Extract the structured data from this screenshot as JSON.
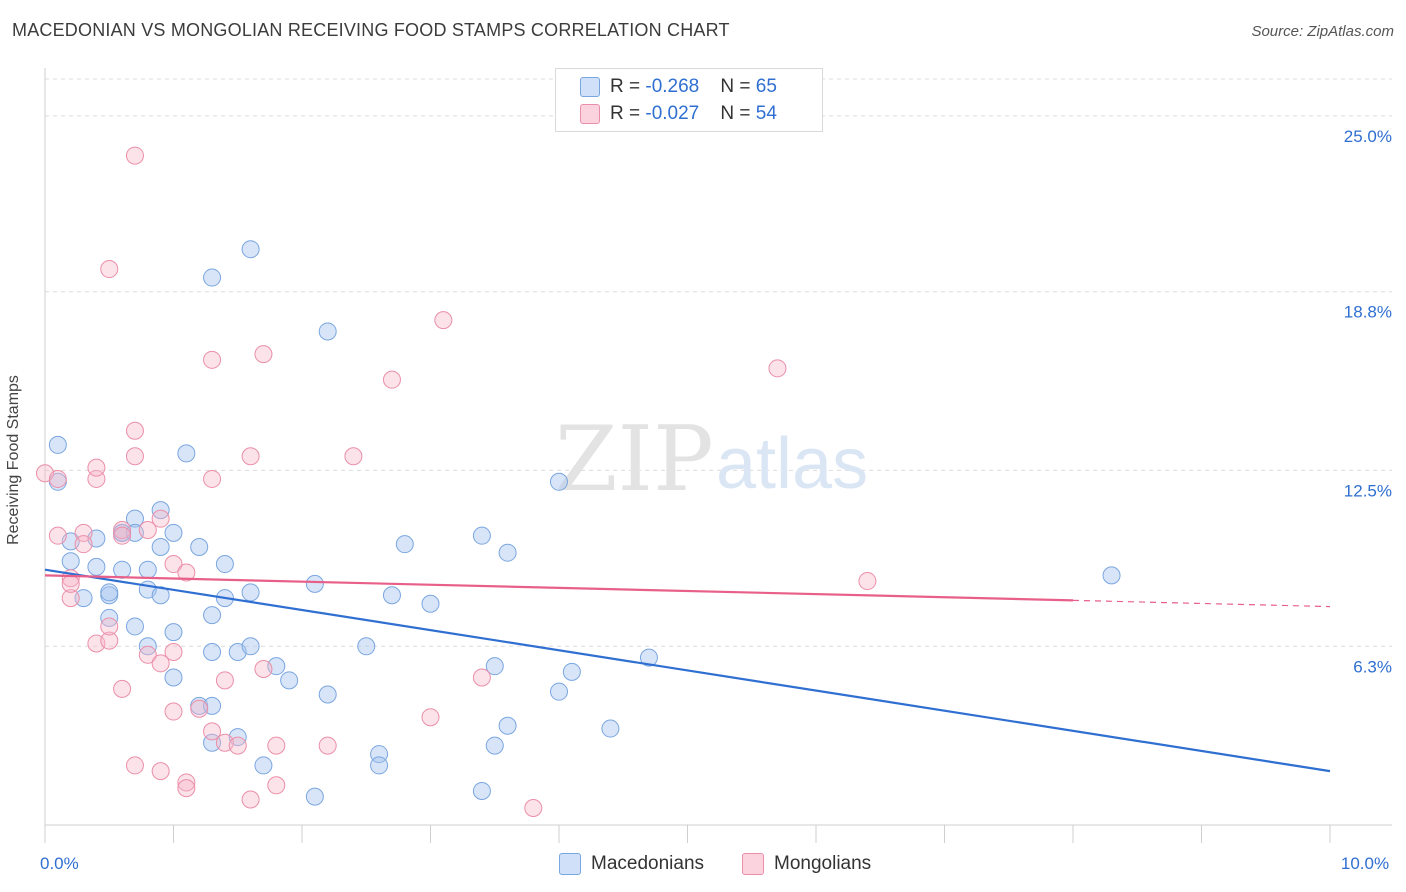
{
  "title": "MACEDONIAN VS MONGOLIAN RECEIVING FOOD STAMPS CORRELATION CHART",
  "source": "Source: ZipAtlas.com",
  "watermark": {
    "zip": "ZIP",
    "atlas": "atlas"
  },
  "legend": {
    "rows": [
      {
        "r_label": "R = ",
        "r_value": "-0.268",
        "n_label": "N = ",
        "n_value": "65",
        "color": "#a8c6f0"
      },
      {
        "r_label": "R = ",
        "r_value": "-0.027",
        "n_label": "N = ",
        "n_value": "54",
        "color": "#f7b6c8"
      }
    ]
  },
  "bottom_legend": [
    {
      "label": "Macedonians",
      "color": "#a8c6f0"
    },
    {
      "label": "Mongolians",
      "color": "#f7b6c8"
    }
  ],
  "chart_data": {
    "type": "scatter",
    "ylabel": "Receiving Food Stamps",
    "xlim": [
      0,
      10
    ],
    "ylim": [
      0,
      26.3
    ],
    "x_tick_labels": [
      {
        "v": 0,
        "label": "0.0%"
      },
      {
        "v": 10,
        "label": "10.0%"
      }
    ],
    "y_tick_labels": [
      {
        "v": 6.3,
        "label": "6.3%"
      },
      {
        "v": 12.5,
        "label": "12.5%"
      },
      {
        "v": 18.8,
        "label": "18.8%"
      },
      {
        "v": 25.0,
        "label": "25.0%"
      }
    ],
    "grid": true,
    "series": [
      {
        "name": "Macedonians",
        "color": "#a8c6f0",
        "stroke": "#7aa6e0",
        "trend": {
          "x0": 0,
          "y0": 9.0,
          "x1": 10,
          "y1": 1.9,
          "color": "#2f6fd1",
          "solid_to": 10
        },
        "points": [
          [
            0.1,
            13.4
          ],
          [
            0.1,
            12.1
          ],
          [
            0.2,
            10.0
          ],
          [
            0.2,
            9.3
          ],
          [
            0.3,
            8.0
          ],
          [
            0.4,
            10.1
          ],
          [
            0.4,
            9.1
          ],
          [
            0.5,
            8.1
          ],
          [
            0.5,
            7.3
          ],
          [
            0.5,
            8.2
          ],
          [
            0.6,
            10.3
          ],
          [
            0.6,
            10.3
          ],
          [
            0.7,
            10.8
          ],
          [
            0.7,
            10.3
          ],
          [
            0.8,
            8.3
          ],
          [
            0.7,
            7.0
          ],
          [
            0.8,
            6.3
          ],
          [
            0.8,
            9.0
          ],
          [
            0.9,
            8.1
          ],
          [
            0.9,
            9.8
          ],
          [
            0.9,
            11.1
          ],
          [
            1.0,
            10.3
          ],
          [
            1.0,
            6.8
          ],
          [
            1.0,
            5.2
          ],
          [
            1.1,
            13.1
          ],
          [
            1.2,
            9.8
          ],
          [
            1.2,
            4.2
          ],
          [
            1.3,
            4.2
          ],
          [
            1.3,
            2.9
          ],
          [
            1.3,
            6.1
          ],
          [
            1.3,
            7.4
          ],
          [
            1.4,
            9.2
          ],
          [
            1.4,
            8.0
          ],
          [
            1.5,
            6.1
          ],
          [
            1.5,
            3.1
          ],
          [
            1.6,
            6.3
          ],
          [
            1.6,
            8.2
          ],
          [
            1.7,
            2.1
          ],
          [
            1.8,
            5.6
          ],
          [
            1.9,
            5.1
          ],
          [
            1.3,
            19.3
          ],
          [
            1.6,
            20.3
          ],
          [
            2.1,
            8.5
          ],
          [
            2.1,
            1.0
          ],
          [
            2.2,
            17.4
          ],
          [
            2.2,
            4.6
          ],
          [
            2.5,
            6.3
          ],
          [
            2.6,
            2.5
          ],
          [
            2.6,
            2.1
          ],
          [
            2.7,
            8.1
          ],
          [
            2.8,
            9.9
          ],
          [
            3.0,
            7.8
          ],
          [
            3.4,
            1.2
          ],
          [
            3.4,
            10.2
          ],
          [
            3.5,
            5.6
          ],
          [
            3.5,
            2.8
          ],
          [
            3.6,
            9.6
          ],
          [
            3.6,
            3.5
          ],
          [
            4.0,
            4.7
          ],
          [
            4.0,
            12.1
          ],
          [
            4.1,
            5.4
          ],
          [
            4.4,
            3.4
          ],
          [
            4.7,
            5.9
          ],
          [
            8.3,
            8.8
          ],
          [
            0.6,
            9.0
          ]
        ]
      },
      {
        "name": "Mongolians",
        "color": "#f7b6c8",
        "stroke": "#eb8fa9",
        "trend": {
          "x0": 0,
          "y0": 8.8,
          "x1": 10,
          "y1": 7.7,
          "color": "#e8608a",
          "solid_to": 8.0
        },
        "points": [
          [
            0.0,
            12.4
          ],
          [
            0.1,
            12.2
          ],
          [
            0.1,
            10.2
          ],
          [
            0.2,
            8.7
          ],
          [
            0.2,
            8.0
          ],
          [
            0.2,
            8.5
          ],
          [
            0.3,
            10.3
          ],
          [
            0.3,
            9.9
          ],
          [
            0.4,
            12.2
          ],
          [
            0.4,
            12.6
          ],
          [
            0.4,
            6.4
          ],
          [
            0.5,
            6.5
          ],
          [
            0.5,
            7.0
          ],
          [
            0.6,
            10.4
          ],
          [
            0.6,
            4.8
          ],
          [
            0.7,
            23.6
          ],
          [
            0.7,
            13.9
          ],
          [
            0.7,
            13.0
          ],
          [
            0.7,
            2.1
          ],
          [
            0.8,
            10.4
          ],
          [
            0.8,
            6.0
          ],
          [
            0.9,
            1.9
          ],
          [
            0.9,
            5.7
          ],
          [
            0.9,
            10.8
          ],
          [
            1.0,
            9.2
          ],
          [
            1.0,
            6.1
          ],
          [
            1.0,
            4.0
          ],
          [
            1.1,
            1.5
          ],
          [
            1.1,
            1.3
          ],
          [
            1.1,
            8.9
          ],
          [
            1.2,
            4.1
          ],
          [
            1.3,
            16.4
          ],
          [
            1.3,
            3.3
          ],
          [
            1.3,
            12.2
          ],
          [
            1.4,
            2.9
          ],
          [
            1.4,
            5.1
          ],
          [
            1.5,
            2.8
          ],
          [
            1.6,
            13.0
          ],
          [
            1.6,
            0.9
          ],
          [
            1.7,
            16.6
          ],
          [
            1.7,
            5.5
          ],
          [
            1.8,
            2.8
          ],
          [
            1.8,
            1.4
          ],
          [
            2.2,
            2.8
          ],
          [
            2.4,
            13.0
          ],
          [
            2.7,
            15.7
          ],
          [
            3.0,
            3.8
          ],
          [
            3.1,
            17.8
          ],
          [
            3.4,
            5.2
          ],
          [
            3.8,
            0.6
          ],
          [
            5.7,
            16.1
          ],
          [
            6.4,
            8.6
          ],
          [
            0.5,
            19.6
          ],
          [
            0.6,
            10.2
          ]
        ]
      }
    ]
  }
}
